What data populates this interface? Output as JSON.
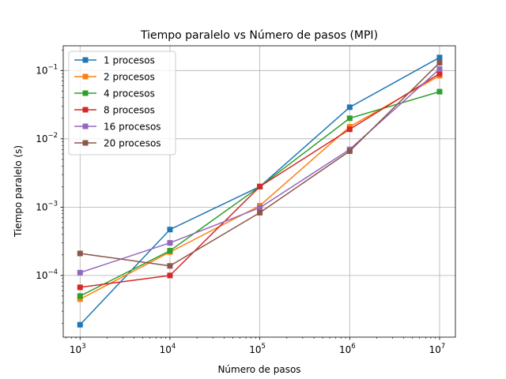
{
  "chart_data": {
    "type": "line",
    "title": "Tiempo paralelo vs Número de pasos (MPI)",
    "xlabel": "Número de pasos",
    "ylabel": "Tiempo paralelo (s)",
    "xscale": "log",
    "yscale": "log",
    "xlim": [
      650,
      15000000
    ],
    "ylim": [
      1.25e-05,
      0.23
    ],
    "grid": true,
    "legend_position": "upper-left",
    "marker": "square",
    "x": [
      1000,
      10000,
      100000,
      1000000,
      10000000
    ],
    "x_ticks": [
      {
        "value": 1000,
        "base": "10",
        "exp": "3"
      },
      {
        "value": 10000,
        "base": "10",
        "exp": "4"
      },
      {
        "value": 100000,
        "base": "10",
        "exp": "5"
      },
      {
        "value": 1000000,
        "base": "10",
        "exp": "6"
      },
      {
        "value": 10000000,
        "base": "10",
        "exp": "7"
      }
    ],
    "y_ticks": [
      {
        "value": 0.0001,
        "base": "10",
        "exp": "−4"
      },
      {
        "value": 0.001,
        "base": "10",
        "exp": "−3"
      },
      {
        "value": 0.01,
        "base": "10",
        "exp": "−2"
      },
      {
        "value": 0.1,
        "base": "10",
        "exp": "−1"
      }
    ],
    "series": [
      {
        "name": "1 procesos",
        "color": "#1f77b4",
        "values": [
          1.9e-05,
          0.00047,
          0.002,
          0.029,
          0.155
        ]
      },
      {
        "name": "2 procesos",
        "color": "#ff7f0e",
        "values": [
          4.5e-05,
          0.00022,
          0.00105,
          0.015,
          0.084
        ]
      },
      {
        "name": "4 procesos",
        "color": "#2ca02c",
        "values": [
          5e-05,
          0.00023,
          0.002,
          0.02,
          0.049
        ]
      },
      {
        "name": "8 procesos",
        "color": "#d62728",
        "values": [
          6.7e-05,
          0.0001,
          0.002,
          0.0138,
          0.09
        ]
      },
      {
        "name": "16 procesos",
        "color": "#9467bd",
        "values": [
          0.00011,
          0.0003,
          0.00098,
          0.007,
          0.105
        ]
      },
      {
        "name": "20 procesos",
        "color": "#8c564b",
        "values": [
          0.00021,
          0.000138,
          0.00083,
          0.0066,
          0.13
        ]
      }
    ]
  }
}
